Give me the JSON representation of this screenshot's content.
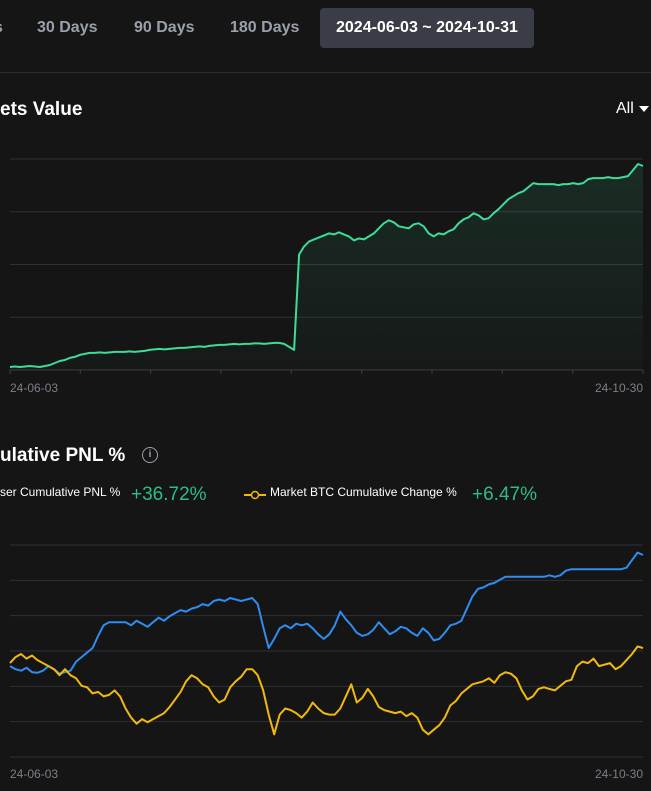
{
  "tabs": [
    "s",
    "30 Days",
    "90 Days",
    "180 Days",
    "2024-06-03 ~ 2024-10-31"
  ],
  "active_tab": 4,
  "assets_title": "ets Value",
  "filter_label": "All",
  "pnl_title": "ulative PNL %",
  "legend": {
    "user_label": "ser Cumulative PNL %",
    "user_value": "+36.72%",
    "btc_label": "Market BTC Cumulative Change %",
    "btc_value": "+6.47%"
  },
  "colors": {
    "assets_line": "#3ddc97",
    "user_line": "#2f8cf0",
    "btc_line": "#f0b90b",
    "positive": "#2ebd85",
    "grid": "#2f3136",
    "active_tab_bg": "#3a3d45"
  },
  "chart_data": [
    {
      "type": "area",
      "title": "ets Value",
      "x_start_label": "24-06-03",
      "x_end_label": "24-10-30",
      "grid": true,
      "gridlines": 5,
      "y": [
        0.3,
        0.35,
        0.3,
        0.35,
        0.4,
        0.35,
        0.3,
        0.4,
        0.5,
        0.7,
        0.9,
        1.0,
        1.2,
        1.3,
        1.5,
        1.6,
        1.7,
        1.7,
        1.75,
        1.7,
        1.75,
        1.8,
        1.8,
        1.8,
        1.85,
        1.8,
        1.85,
        1.9,
        2.0,
        2.05,
        2.1,
        2.05,
        2.1,
        2.15,
        2.2,
        2.2,
        2.25,
        2.3,
        2.35,
        2.3,
        2.4,
        2.45,
        2.5,
        2.5,
        2.55,
        2.6,
        2.55,
        2.6,
        2.6,
        2.65,
        2.65,
        2.6,
        2.65,
        2.7,
        2.7,
        2.6,
        2.3,
        2.0,
        11.5,
        12.3,
        12.8,
        13.0,
        13.2,
        13.4,
        13.6,
        13.5,
        13.7,
        13.5,
        13.3,
        12.9,
        13.1,
        13.0,
        13.3,
        13.6,
        14.1,
        14.6,
        14.9,
        14.7,
        14.3,
        14.2,
        14.1,
        14.5,
        14.6,
        14.3,
        13.6,
        13.3,
        13.6,
        13.5,
        13.8,
        14.0,
        14.6,
        15.0,
        15.2,
        15.6,
        15.4,
        15.0,
        15.1,
        15.6,
        16.0,
        16.5,
        17.0,
        17.3,
        17.6,
        17.8,
        18.2,
        18.6,
        18.5,
        18.5,
        18.5,
        18.5,
        18.4,
        18.5,
        18.5,
        18.6,
        18.5,
        18.6,
        19.0,
        19.1,
        19.1,
        19.1,
        19.2,
        19.1,
        19.1,
        19.2,
        19.3,
        19.9,
        20.5,
        20.3
      ],
      "ylim": [
        0,
        21
      ]
    },
    {
      "type": "line",
      "title": "ulative PNL %",
      "x_start_label": "24-06-03",
      "x_end_label": "24-10-30",
      "grid": true,
      "gridlines": 7,
      "ylim": [
        -30,
        40
      ],
      "series": [
        {
          "name": "ser Cumulative PNL %",
          "color": "#2f8cf0",
          "values": [
            0.0,
            -1.0,
            -1.5,
            -0.5,
            -2.0,
            -2.2,
            -1.5,
            0.0,
            -1.0,
            -2.5,
            -2.0,
            -1.5,
            1.5,
            3.0,
            4.5,
            6.0,
            10.0,
            13.5,
            14.5,
            14.5,
            14.5,
            14.5,
            13.5,
            15.0,
            14.0,
            13.0,
            14.5,
            16.0,
            15.0,
            16.5,
            17.5,
            18.5,
            18.0,
            19.0,
            19.5,
            20.5,
            20.0,
            21.5,
            22.0,
            21.5,
            22.5,
            22.0,
            21.5,
            22.0,
            22.5,
            20.5,
            13.0,
            6.0,
            9.0,
            12.5,
            13.5,
            12.5,
            14.0,
            13.5,
            14.0,
            12.5,
            10.5,
            9.0,
            10.5,
            13.5,
            18.0,
            15.5,
            13.5,
            11.0,
            10.0,
            10.5,
            12.0,
            14.5,
            12.5,
            10.5,
            11.5,
            13.0,
            12.5,
            11.0,
            10.0,
            12.5,
            11.0,
            8.5,
            9.0,
            11.0,
            13.5,
            14.0,
            15.0,
            19.0,
            23.0,
            25.5,
            26.0,
            27.0,
            27.5,
            28.5,
            29.5,
            29.5,
            29.5,
            29.5,
            29.5,
            29.5,
            29.5,
            29.5,
            30.0,
            29.5,
            30.0,
            31.5,
            32.0,
            32.0,
            32.0,
            32.0,
            32.0,
            32.0,
            32.0,
            32.0,
            32.0,
            32.0,
            32.5,
            35.0,
            37.5,
            36.7
          ]
        },
        {
          "name": "Market BTC Cumulative Change %",
          "color": "#f0b90b",
          "values": [
            1.0,
            3.0,
            4.0,
            2.5,
            3.5,
            2.0,
            1.0,
            0.0,
            -1.0,
            -3.0,
            -1.0,
            -3.0,
            -4.0,
            -6.5,
            -7.0,
            -9.0,
            -8.5,
            -10.0,
            -9.5,
            -8.0,
            -10.0,
            -14.0,
            -17.0,
            -19.0,
            -17.5,
            -18.5,
            -17.5,
            -16.5,
            -15.5,
            -13.5,
            -11.0,
            -8.5,
            -5.0,
            -3.0,
            -4.0,
            -6.0,
            -7.0,
            -10.0,
            -12.0,
            -11.0,
            -7.0,
            -5.0,
            -3.5,
            -1.0,
            -1.0,
            -3.0,
            -8.0,
            -16.0,
            -22.5,
            -16.0,
            -14.0,
            -14.5,
            -15.5,
            -17.0,
            -15.0,
            -12.0,
            -14.0,
            -15.5,
            -16.0,
            -16.0,
            -14.0,
            -10.0,
            -6.0,
            -12.0,
            -10.5,
            -7.5,
            -10.0,
            -13.5,
            -14.5,
            -15.0,
            -15.5,
            -15.0,
            -16.5,
            -15.5,
            -17.0,
            -21.0,
            -22.5,
            -21.0,
            -19.5,
            -17.0,
            -13.0,
            -11.5,
            -9.0,
            -7.5,
            -6.0,
            -5.5,
            -5.0,
            -4.0,
            -5.5,
            -3.0,
            -2.0,
            -2.5,
            -4.0,
            -8.0,
            -11.0,
            -10.0,
            -7.5,
            -7.0,
            -7.5,
            -8.0,
            -6.5,
            -5.0,
            -4.5,
            0.0,
            1.5,
            1.0,
            2.5,
            0.0,
            0.5,
            1.0,
            -1.0,
            0.0,
            2.0,
            4.0,
            6.5,
            6.0
          ]
        }
      ]
    }
  ]
}
